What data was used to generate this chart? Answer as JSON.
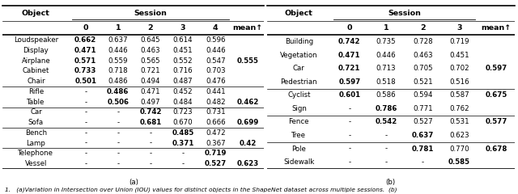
{
  "table_a": {
    "title_col": "Object",
    "title_session": "Session",
    "col_headers": [
      "0",
      "1",
      "2",
      "3",
      "4",
      "mean↑"
    ],
    "rows": [
      [
        "Loudspeaker",
        "0.662",
        "0.637",
        "0.645",
        "0.614",
        "0.596",
        ""
      ],
      [
        "Display",
        "0.471",
        "0.446",
        "0.463",
        "0.451",
        "0.446",
        ""
      ],
      [
        "Airplane",
        "0.571",
        "0.559",
        "0.565",
        "0.552",
        "0.547",
        "0.555"
      ],
      [
        "Cabinet",
        "0.733",
        "0.718",
        "0.721",
        "0.716",
        "0.703",
        ""
      ],
      [
        "Chair",
        "0.501",
        "0.486",
        "0.494",
        "0.487",
        "0.476",
        ""
      ],
      [
        "Rifle",
        "-",
        "0.486",
        "0.471",
        "0.452",
        "0.441",
        ""
      ],
      [
        "Table",
        "-",
        "0.506",
        "0.497",
        "0.484",
        "0.482",
        "0.462"
      ],
      [
        "Car",
        "-",
        "-",
        "0.742",
        "0.723",
        "0.731",
        ""
      ],
      [
        "Sofa",
        "-",
        "-",
        "0.681",
        "0.670",
        "0.666",
        "0.699"
      ],
      [
        "Bench",
        "-",
        "-",
        "-",
        "0.485",
        "0.472",
        ""
      ],
      [
        "Lamp",
        "-",
        "-",
        "-",
        "0.371",
        "0.367",
        "0.42"
      ],
      [
        "Telephone",
        "-",
        "-",
        "-",
        "-",
        "0.719",
        ""
      ],
      [
        "Vessel",
        "-",
        "-",
        "-",
        "-",
        "0.527",
        "0.623"
      ]
    ],
    "group_dividers": [
      5,
      7,
      9,
      11
    ],
    "caption": "(a)"
  },
  "table_b": {
    "title_col": "Object",
    "title_session": "Session",
    "col_headers": [
      "0",
      "1",
      "2",
      "3",
      "mean↑"
    ],
    "rows": [
      [
        "Building",
        "0.742",
        "0.735",
        "0.728",
        "0.719",
        ""
      ],
      [
        "Vegetation",
        "0.471",
        "0.446",
        "0.463",
        "0.451",
        ""
      ],
      [
        "Car",
        "0.721",
        "0.713",
        "0.705",
        "0.702",
        "0.597"
      ],
      [
        "Pedestrian",
        "0.597",
        "0.518",
        "0.521",
        "0.516",
        ""
      ],
      [
        "Cyclist",
        "0.601",
        "0.586",
        "0.594",
        "0.587",
        "0.675"
      ],
      [
        "Sign",
        "-",
        "0.786",
        "0.771",
        "0.762",
        ""
      ],
      [
        "Fence",
        "-",
        "0.542",
        "0.527",
        "0.531",
        "0.577"
      ],
      [
        "Tree",
        "-",
        "-",
        "0.637",
        "0.623",
        ""
      ],
      [
        "Pole",
        "-",
        "-",
        "0.781",
        "0.770",
        "0.678"
      ],
      [
        "Sidewalk",
        "-",
        "-",
        "-",
        "0.585",
        ""
      ]
    ],
    "group_dividers": [
      4,
      6,
      8
    ],
    "caption": "(b)"
  },
  "figure_caption": "1.   (a)Variation in Intersection over Union (IOU) values for distinct objects in the ShapeNet dataset across multiple sessions.  (b)",
  "font_size": 6.2,
  "header_font_size": 6.8
}
